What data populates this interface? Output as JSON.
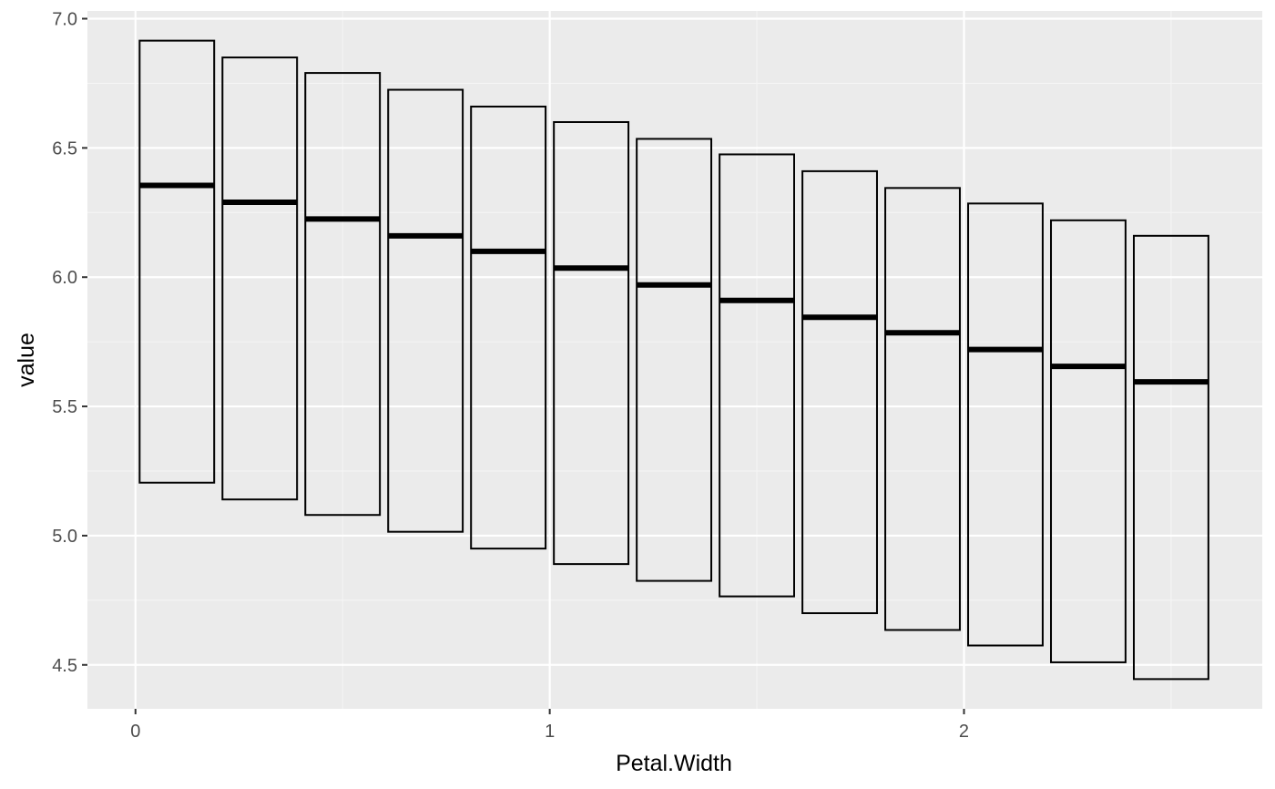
{
  "chart_data": {
    "type": "crossbar",
    "title": "",
    "xlabel": "Petal.Width",
    "ylabel": "value",
    "xlim": [
      -0.116,
      2.72
    ],
    "ylim": [
      4.33,
      7.03
    ],
    "x_ticks": [
      0,
      1,
      2
    ],
    "x_tick_labels": [
      "0",
      "1",
      "2"
    ],
    "y_ticks": [
      4.5,
      5.0,
      5.5,
      6.0,
      6.5,
      7.0
    ],
    "y_tick_labels": [
      "4.5",
      "5.0",
      "5.5",
      "6.0",
      "6.5",
      "7.0"
    ],
    "grid": true,
    "legend": "none",
    "bar_width": 0.18,
    "x": [
      0.1,
      0.3,
      0.5,
      0.7,
      0.9,
      1.1,
      1.3,
      1.5,
      1.7,
      1.9,
      2.1,
      2.3,
      2.5
    ],
    "y": [
      6.355,
      6.29,
      6.225,
      6.16,
      6.1,
      6.035,
      5.97,
      5.91,
      5.845,
      5.785,
      5.72,
      5.655,
      5.595
    ],
    "ymin": [
      5.205,
      5.14,
      5.08,
      5.015,
      4.95,
      4.89,
      4.825,
      4.765,
      4.7,
      4.635,
      4.575,
      4.51,
      4.445
    ],
    "ymax": [
      6.915,
      6.85,
      6.79,
      6.725,
      6.66,
      6.6,
      6.535,
      6.475,
      6.41,
      6.345,
      6.285,
      6.22,
      6.16
    ]
  },
  "colors": {
    "panel_background": "#ebebeb",
    "grid_major": "#ffffff",
    "grid_minor": "#f5f5f5",
    "box_stroke": "#000000",
    "tick_text": "#4d4d4d",
    "axis_title": "#000000"
  }
}
